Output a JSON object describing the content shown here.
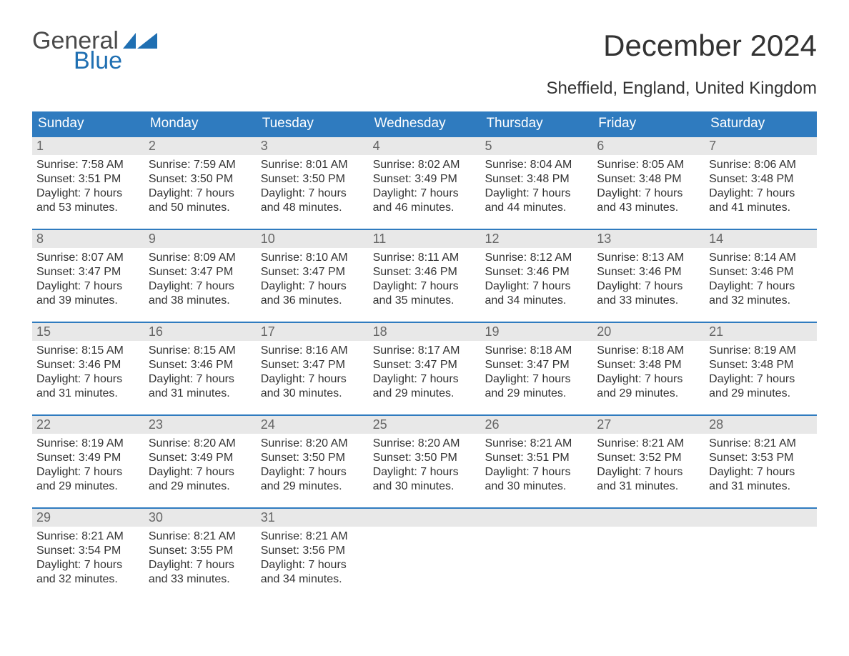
{
  "logo": {
    "general": "General",
    "blue": "Blue"
  },
  "title": "December 2024",
  "subtitle": "Sheffield, England, United Kingdom",
  "colors": {
    "header_bg": "#2f7bbf",
    "header_text": "#ffffff",
    "daynum_bg": "#e8e8e8",
    "daynum_text": "#666666",
    "body_text": "#333333",
    "week_border": "#2f7bbf",
    "logo_gray": "#4a4a4a",
    "logo_blue": "#1f6fb2",
    "background": "#ffffff"
  },
  "typography": {
    "title_fontsize": 42,
    "subtitle_fontsize": 24,
    "weekday_fontsize": 19,
    "daynum_fontsize": 18,
    "body_fontsize": 16,
    "logo_fontsize": 34,
    "font_family": "Arial"
  },
  "weekdays": [
    "Sunday",
    "Monday",
    "Tuesday",
    "Wednesday",
    "Thursday",
    "Friday",
    "Saturday"
  ],
  "weeks": [
    [
      {
        "n": "1",
        "sr": "Sunrise: 7:58 AM",
        "ss": "Sunset: 3:51 PM",
        "d1": "Daylight: 7 hours",
        "d2": "and 53 minutes."
      },
      {
        "n": "2",
        "sr": "Sunrise: 7:59 AM",
        "ss": "Sunset: 3:50 PM",
        "d1": "Daylight: 7 hours",
        "d2": "and 50 minutes."
      },
      {
        "n": "3",
        "sr": "Sunrise: 8:01 AM",
        "ss": "Sunset: 3:50 PM",
        "d1": "Daylight: 7 hours",
        "d2": "and 48 minutes."
      },
      {
        "n": "4",
        "sr": "Sunrise: 8:02 AM",
        "ss": "Sunset: 3:49 PM",
        "d1": "Daylight: 7 hours",
        "d2": "and 46 minutes."
      },
      {
        "n": "5",
        "sr": "Sunrise: 8:04 AM",
        "ss": "Sunset: 3:48 PM",
        "d1": "Daylight: 7 hours",
        "d2": "and 44 minutes."
      },
      {
        "n": "6",
        "sr": "Sunrise: 8:05 AM",
        "ss": "Sunset: 3:48 PM",
        "d1": "Daylight: 7 hours",
        "d2": "and 43 minutes."
      },
      {
        "n": "7",
        "sr": "Sunrise: 8:06 AM",
        "ss": "Sunset: 3:48 PM",
        "d1": "Daylight: 7 hours",
        "d2": "and 41 minutes."
      }
    ],
    [
      {
        "n": "8",
        "sr": "Sunrise: 8:07 AM",
        "ss": "Sunset: 3:47 PM",
        "d1": "Daylight: 7 hours",
        "d2": "and 39 minutes."
      },
      {
        "n": "9",
        "sr": "Sunrise: 8:09 AM",
        "ss": "Sunset: 3:47 PM",
        "d1": "Daylight: 7 hours",
        "d2": "and 38 minutes."
      },
      {
        "n": "10",
        "sr": "Sunrise: 8:10 AM",
        "ss": "Sunset: 3:47 PM",
        "d1": "Daylight: 7 hours",
        "d2": "and 36 minutes."
      },
      {
        "n": "11",
        "sr": "Sunrise: 8:11 AM",
        "ss": "Sunset: 3:46 PM",
        "d1": "Daylight: 7 hours",
        "d2": "and 35 minutes."
      },
      {
        "n": "12",
        "sr": "Sunrise: 8:12 AM",
        "ss": "Sunset: 3:46 PM",
        "d1": "Daylight: 7 hours",
        "d2": "and 34 minutes."
      },
      {
        "n": "13",
        "sr": "Sunrise: 8:13 AM",
        "ss": "Sunset: 3:46 PM",
        "d1": "Daylight: 7 hours",
        "d2": "and 33 minutes."
      },
      {
        "n": "14",
        "sr": "Sunrise: 8:14 AM",
        "ss": "Sunset: 3:46 PM",
        "d1": "Daylight: 7 hours",
        "d2": "and 32 minutes."
      }
    ],
    [
      {
        "n": "15",
        "sr": "Sunrise: 8:15 AM",
        "ss": "Sunset: 3:46 PM",
        "d1": "Daylight: 7 hours",
        "d2": "and 31 minutes."
      },
      {
        "n": "16",
        "sr": "Sunrise: 8:15 AM",
        "ss": "Sunset: 3:46 PM",
        "d1": "Daylight: 7 hours",
        "d2": "and 31 minutes."
      },
      {
        "n": "17",
        "sr": "Sunrise: 8:16 AM",
        "ss": "Sunset: 3:47 PM",
        "d1": "Daylight: 7 hours",
        "d2": "and 30 minutes."
      },
      {
        "n": "18",
        "sr": "Sunrise: 8:17 AM",
        "ss": "Sunset: 3:47 PM",
        "d1": "Daylight: 7 hours",
        "d2": "and 29 minutes."
      },
      {
        "n": "19",
        "sr": "Sunrise: 8:18 AM",
        "ss": "Sunset: 3:47 PM",
        "d1": "Daylight: 7 hours",
        "d2": "and 29 minutes."
      },
      {
        "n": "20",
        "sr": "Sunrise: 8:18 AM",
        "ss": "Sunset: 3:48 PM",
        "d1": "Daylight: 7 hours",
        "d2": "and 29 minutes."
      },
      {
        "n": "21",
        "sr": "Sunrise: 8:19 AM",
        "ss": "Sunset: 3:48 PM",
        "d1": "Daylight: 7 hours",
        "d2": "and 29 minutes."
      }
    ],
    [
      {
        "n": "22",
        "sr": "Sunrise: 8:19 AM",
        "ss": "Sunset: 3:49 PM",
        "d1": "Daylight: 7 hours",
        "d2": "and 29 minutes."
      },
      {
        "n": "23",
        "sr": "Sunrise: 8:20 AM",
        "ss": "Sunset: 3:49 PM",
        "d1": "Daylight: 7 hours",
        "d2": "and 29 minutes."
      },
      {
        "n": "24",
        "sr": "Sunrise: 8:20 AM",
        "ss": "Sunset: 3:50 PM",
        "d1": "Daylight: 7 hours",
        "d2": "and 29 minutes."
      },
      {
        "n": "25",
        "sr": "Sunrise: 8:20 AM",
        "ss": "Sunset: 3:50 PM",
        "d1": "Daylight: 7 hours",
        "d2": "and 30 minutes."
      },
      {
        "n": "26",
        "sr": "Sunrise: 8:21 AM",
        "ss": "Sunset: 3:51 PM",
        "d1": "Daylight: 7 hours",
        "d2": "and 30 minutes."
      },
      {
        "n": "27",
        "sr": "Sunrise: 8:21 AM",
        "ss": "Sunset: 3:52 PM",
        "d1": "Daylight: 7 hours",
        "d2": "and 31 minutes."
      },
      {
        "n": "28",
        "sr": "Sunrise: 8:21 AM",
        "ss": "Sunset: 3:53 PM",
        "d1": "Daylight: 7 hours",
        "d2": "and 31 minutes."
      }
    ],
    [
      {
        "n": "29",
        "sr": "Sunrise: 8:21 AM",
        "ss": "Sunset: 3:54 PM",
        "d1": "Daylight: 7 hours",
        "d2": "and 32 minutes."
      },
      {
        "n": "30",
        "sr": "Sunrise: 8:21 AM",
        "ss": "Sunset: 3:55 PM",
        "d1": "Daylight: 7 hours",
        "d2": "and 33 minutes."
      },
      {
        "n": "31",
        "sr": "Sunrise: 8:21 AM",
        "ss": "Sunset: 3:56 PM",
        "d1": "Daylight: 7 hours",
        "d2": "and 34 minutes."
      },
      {
        "empty": true
      },
      {
        "empty": true
      },
      {
        "empty": true
      },
      {
        "empty": true
      }
    ]
  ]
}
